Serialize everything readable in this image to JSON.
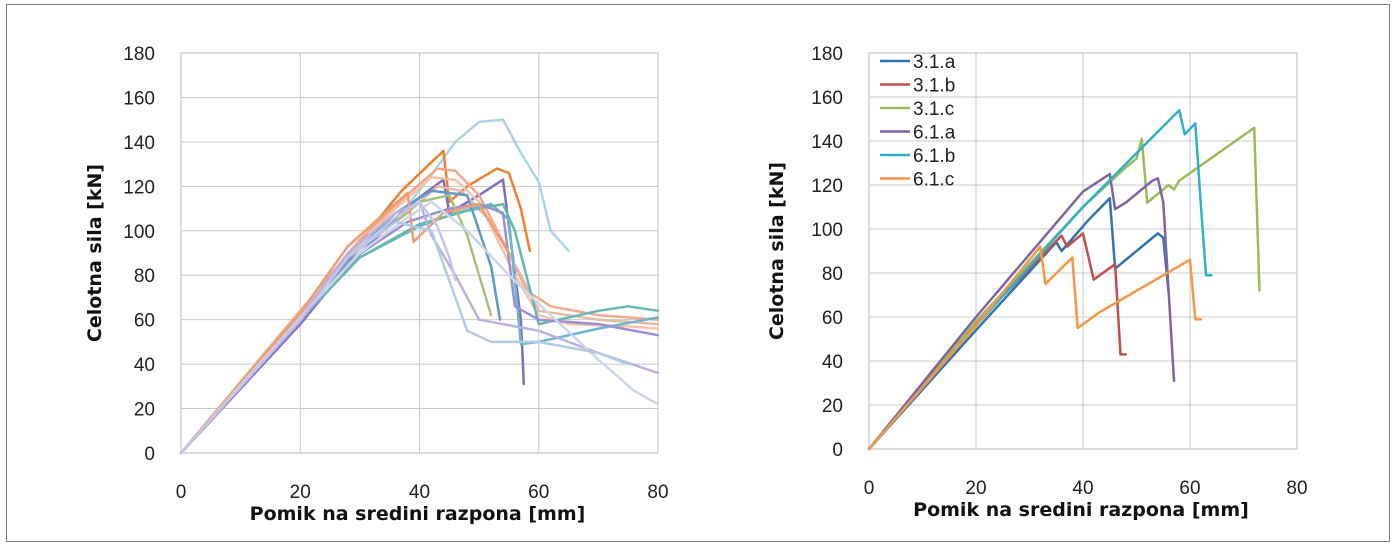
{
  "chart_data": [
    {
      "type": "line",
      "xlabel": "Pomik na sredini razpona [mm]",
      "ylabel": "Celotna sila [kN]",
      "xlim": [
        0,
        80
      ],
      "ylim": [
        0,
        180
      ],
      "xticks": [
        "0",
        "20",
        "40",
        "60",
        "80"
      ],
      "yticks": [
        "0",
        "20",
        "40",
        "60",
        "80",
        "100",
        "120",
        "140",
        "160",
        "180"
      ],
      "grid": true,
      "legend": "none",
      "series": [
        {
          "color": "#a9d4e4",
          "x": [
            0,
            20,
            30,
            37,
            42,
            46,
            50,
            54,
            57,
            60,
            62,
            65
          ],
          "y": [
            0,
            62,
            90,
            108,
            125,
            140,
            149,
            150,
            135,
            122,
            100,
            91
          ]
        },
        {
          "color": "#ef7f2f",
          "x": [
            0,
            20,
            30,
            37,
            44,
            45,
            48,
            53,
            55,
            57,
            58.5
          ],
          "y": [
            0,
            64,
            95,
            118,
            136,
            113,
            120,
            128,
            126,
            110,
            91
          ]
        },
        {
          "color": "#7f6fbf",
          "x": [
            0,
            20,
            28,
            38,
            44,
            45,
            50,
            54,
            57,
            57.5
          ],
          "y": [
            0,
            58,
            84,
            111,
            123,
            108,
            116,
            123,
            60,
            31
          ]
        },
        {
          "color": "#f2a98a",
          "x": [
            0,
            20,
            30,
            37,
            43,
            46,
            50,
            55,
            58,
            62,
            70,
            80
          ],
          "y": [
            0,
            64,
            96,
            114,
            128,
            127,
            116,
            90,
            73,
            66,
            62,
            60
          ]
        },
        {
          "color": "#f6c2a8",
          "x": [
            0,
            20,
            30,
            36,
            42,
            46,
            50,
            56,
            60,
            65,
            75,
            80
          ],
          "y": [
            0,
            63,
            94,
            110,
            124,
            123,
            113,
            80,
            62,
            58,
            57,
            56
          ]
        },
        {
          "color": "#e7b8a5",
          "x": [
            0,
            20,
            30,
            38,
            43,
            47,
            52,
            57,
            60,
            70,
            80
          ],
          "y": [
            0,
            62,
            92,
            108,
            120,
            118,
            104,
            80,
            64,
            60,
            58
          ]
        },
        {
          "color": "#6ab7cf",
          "x": [
            0,
            20,
            30,
            40,
            46,
            52,
            55,
            57,
            60,
            70,
            80
          ],
          "y": [
            0,
            60,
            88,
            102,
            108,
            112,
            105,
            49,
            50,
            56,
            61
          ]
        },
        {
          "color": "#66b8b0",
          "x": [
            0,
            20,
            30,
            40,
            48,
            54,
            56,
            60,
            70,
            75,
            80
          ],
          "y": [
            0,
            60,
            88,
            103,
            109,
            112,
            100,
            58,
            64,
            66,
            64
          ]
        },
        {
          "color": "#9b8fd4",
          "x": [
            0,
            20,
            28,
            38,
            45,
            50,
            54,
            56,
            60,
            70,
            80
          ],
          "y": [
            0,
            59,
            86,
            104,
            110,
            112,
            108,
            66,
            60,
            58,
            53
          ]
        },
        {
          "color": "#a7c07a",
          "x": [
            0,
            20,
            28,
            36,
            40,
            45,
            48,
            50,
            52
          ],
          "y": [
            0,
            61,
            88,
            104,
            113,
            116,
            98,
            80,
            62
          ]
        },
        {
          "color": "#5a9cc9",
          "x": [
            0,
            20,
            28,
            36,
            42,
            48,
            52,
            53.5
          ],
          "y": [
            0,
            61,
            87,
            108,
            118,
            116,
            84,
            60
          ]
        },
        {
          "color": "#f09d6e",
          "x": [
            0,
            20,
            28,
            35,
            38,
            39,
            44,
            50,
            55
          ],
          "y": [
            0,
            63,
            93,
            110,
            117,
            95,
            108,
            112,
            90
          ]
        },
        {
          "color": "#b7b2e0",
          "x": [
            0,
            20,
            28,
            36,
            40,
            42,
            46,
            50,
            60,
            70,
            80
          ],
          "y": [
            0,
            61,
            90,
            108,
            113,
            98,
            80,
            60,
            55,
            45,
            36
          ]
        },
        {
          "color": "#cbd6ea",
          "x": [
            0,
            20,
            30,
            38,
            42,
            48,
            55,
            62,
            70,
            76,
            80
          ],
          "y": [
            0,
            61,
            90,
            106,
            113,
            100,
            80,
            62,
            42,
            28,
            22
          ]
        },
        {
          "color": "#b4c9e6",
          "x": [
            0,
            20,
            28,
            36,
            42,
            46,
            48,
            52,
            60,
            70,
            75
          ],
          "y": [
            0,
            60,
            88,
            104,
            100,
            70,
            55,
            50,
            50,
            45,
            40
          ]
        },
        {
          "color": "#c6c4e6",
          "x": [
            0,
            20,
            28,
            36,
            40,
            43,
            45,
            46
          ],
          "y": [
            0,
            60,
            88,
            106,
            113,
            102,
            88,
            78
          ]
        }
      ]
    },
    {
      "type": "line",
      "xlabel": "Pomik na sredini razpona [mm]",
      "ylabel": "Celotna sila [kN]",
      "xlim": [
        0,
        80
      ],
      "ylim": [
        0,
        180
      ],
      "xticks": [
        "0",
        "20",
        "40",
        "60",
        "80"
      ],
      "yticks": [
        "0",
        "20",
        "40",
        "60",
        "80",
        "100",
        "120",
        "140",
        "160",
        "180"
      ],
      "grid": true,
      "legend": "top-left",
      "series": [
        {
          "name": "3.1.a",
          "color": "#2e75b6",
          "x": [
            0,
            20,
            35,
            36,
            41,
            45,
            46,
            54,
            55,
            56
          ],
          "y": [
            0,
            54,
            94,
            90,
            104,
            114,
            82,
            98,
            96,
            71
          ]
        },
        {
          "name": "3.1.b",
          "color": "#c0504d",
          "x": [
            0,
            20,
            36,
            37,
            40,
            42,
            46,
            47,
            48
          ],
          "y": [
            0,
            57,
            97,
            92,
            98,
            77,
            84,
            43,
            43
          ]
        },
        {
          "name": "3.1.c",
          "color": "#9bbb59",
          "x": [
            0,
            20,
            40,
            48,
            50,
            51,
            52,
            56,
            57,
            58,
            72,
            73
          ],
          "y": [
            0,
            58,
            110,
            128,
            132,
            141,
            112,
            120,
            118,
            122,
            146,
            72
          ]
        },
        {
          "name": "6.1.a",
          "color": "#8064a2",
          "x": [
            0,
            20,
            40,
            45,
            46,
            48,
            53,
            54,
            55,
            57
          ],
          "y": [
            0,
            60,
            117,
            125,
            109,
            112,
            122,
            123,
            112,
            31
          ]
        },
        {
          "name": "6.1.b",
          "color": "#31b0c7",
          "x": [
            0,
            20,
            40,
            58,
            59,
            61,
            62,
            63,
            64
          ],
          "y": [
            0,
            56,
            110,
            154,
            143,
            148,
            112,
            79,
            79
          ]
        },
        {
          "name": "6.1.c",
          "color": "#f79646",
          "x": [
            0,
            20,
            32,
            33,
            38,
            39,
            43,
            60,
            61,
            62
          ],
          "y": [
            0,
            56,
            92,
            75,
            87,
            55,
            62,
            86,
            59,
            59
          ]
        }
      ]
    }
  ]
}
